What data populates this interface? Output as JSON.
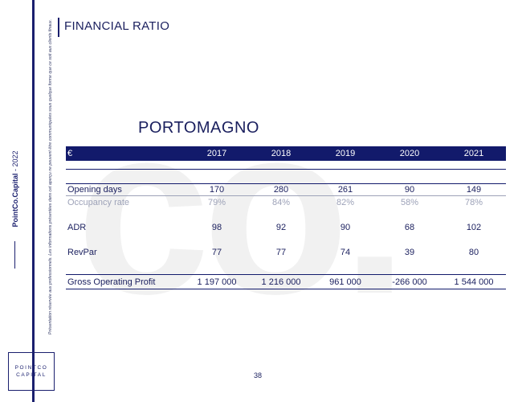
{
  "sidebar": {
    "brand": "PointCo.Capital",
    "separator": " - ",
    "year": "2022",
    "disclaimer": "Présentation réservée aux professionnels. Les informations présentées dans cet aperçu ne peuvent être communiquées sous quelque forme que ce soit aux clients finaux."
  },
  "logo": {
    "line1": "POINTCO",
    "line2": "CAPITAL"
  },
  "watermark": "co.",
  "header": {
    "title": "FINANCIAL RATIO"
  },
  "hotel": {
    "name": "PORTOMAGNO"
  },
  "table": {
    "currency": "€",
    "years": [
      "2017",
      "2018",
      "2019",
      "2020",
      "2021"
    ],
    "rows": [
      {
        "label": "Opening days",
        "values": [
          "170",
          "280",
          "261",
          "90",
          "149"
        ]
      },
      {
        "label": "Occupancy rate",
        "values": [
          "79%",
          "84%",
          "82%",
          "58%",
          "78%"
        ]
      },
      {
        "label": "ADR",
        "values": [
          "98",
          "92",
          "90",
          "68",
          "102"
        ]
      },
      {
        "label": "RevPar",
        "values": [
          "77",
          "77",
          "74",
          "39",
          "80"
        ]
      },
      {
        "label": "Gross Operating Profit",
        "values": [
          "1 197 000",
          "1 216 000",
          "961 000",
          "-266 000",
          "1 544 000"
        ]
      }
    ]
  },
  "footer": {
    "page_number": "38"
  }
}
